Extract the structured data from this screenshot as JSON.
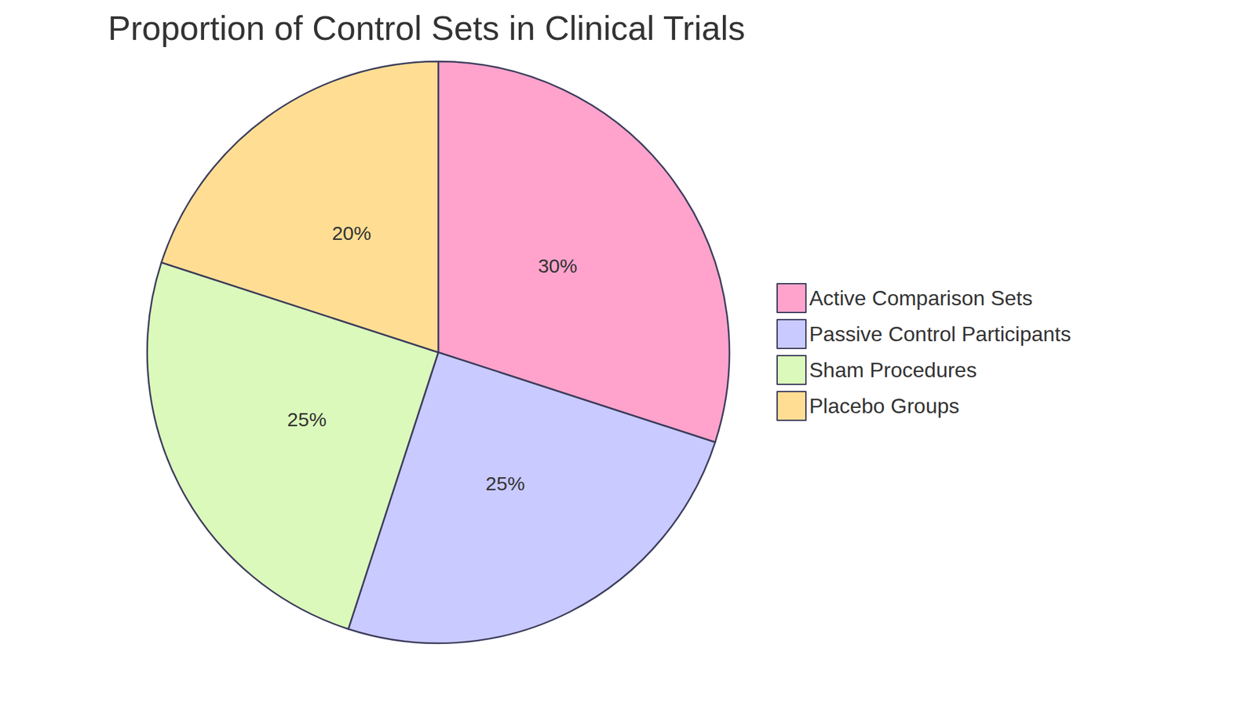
{
  "chart_data": {
    "type": "pie",
    "title": "Proportion of Control Sets in Clinical Trials",
    "categories": [
      "Active Comparison Sets",
      "Passive Control Participants",
      "Sham Procedures",
      "Placebo Groups"
    ],
    "values": [
      30,
      25,
      25,
      20
    ],
    "value_labels": [
      "30%",
      "25%",
      "25%",
      "20%"
    ],
    "colors": [
      "#ffa3cc",
      "#c9caff",
      "#dbf9bb",
      "#ffde94"
    ],
    "data_labels": true,
    "legend": "right"
  }
}
